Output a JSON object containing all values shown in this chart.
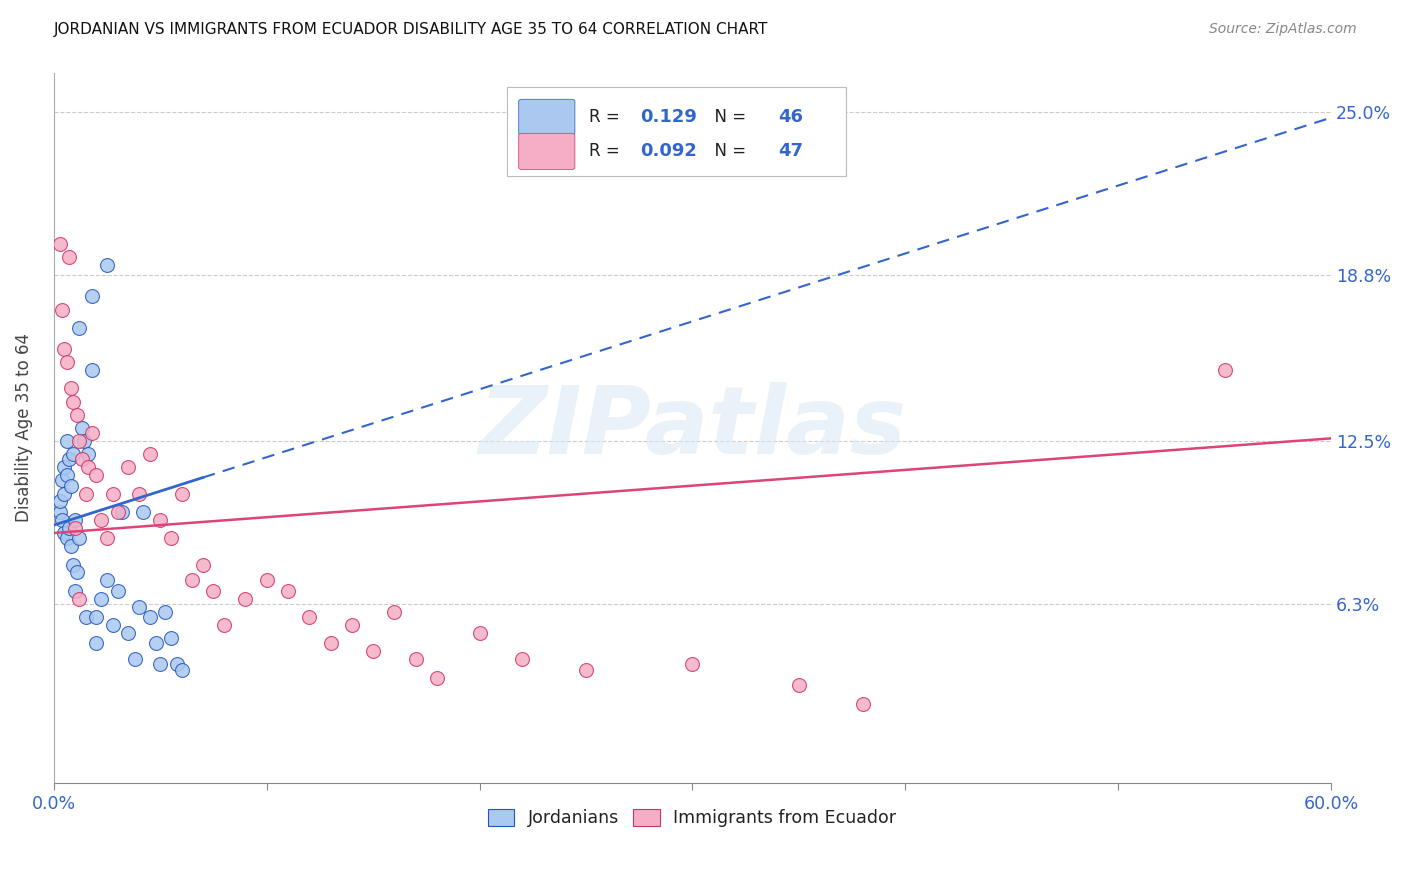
{
  "title": "JORDANIAN VS IMMIGRANTS FROM ECUADOR DISABILITY AGE 35 TO 64 CORRELATION CHART",
  "source": "Source: ZipAtlas.com",
  "ylabel": "Disability Age 35 to 64",
  "xlim": [
    0.0,
    0.6
  ],
  "ylim": [
    -0.005,
    0.265
  ],
  "ytick_values": [
    0.063,
    0.125,
    0.188,
    0.25
  ],
  "ytick_labels": [
    "6.3%",
    "12.5%",
    "18.8%",
    "25.0%"
  ],
  "blue_R": 0.129,
  "blue_N": 46,
  "pink_R": 0.092,
  "pink_N": 47,
  "blue_color": "#aac8f0",
  "pink_color": "#f5aec5",
  "blue_line_color": "#3366cc",
  "pink_line_color": "#dd4477",
  "blue_edge_color": "#2255bb",
  "pink_edge_color": "#cc3366",
  "axis_label_color": "#3366cc",
  "watermark_color": "#e0eaf8",
  "watermark_text": "ZIPatlas",
  "blue_trend_x0": 0.0,
  "blue_trend_y0": 0.093,
  "blue_trend_x1": 0.6,
  "blue_trend_y1": 0.248,
  "pink_trend_x0": 0.0,
  "pink_trend_y0": 0.09,
  "pink_trend_x1": 0.6,
  "pink_trend_y1": 0.126,
  "blue_x": [
    0.003,
    0.003,
    0.004,
    0.004,
    0.005,
    0.005,
    0.005,
    0.006,
    0.006,
    0.006,
    0.007,
    0.007,
    0.008,
    0.008,
    0.009,
    0.009,
    0.01,
    0.01,
    0.011,
    0.012,
    0.013,
    0.014,
    0.015,
    0.016,
    0.018,
    0.02,
    0.02,
    0.022,
    0.025,
    0.028,
    0.03,
    0.032,
    0.035,
    0.038,
    0.04,
    0.042,
    0.045,
    0.048,
    0.05,
    0.052,
    0.055,
    0.058,
    0.06,
    0.025,
    0.018,
    0.012
  ],
  "blue_y": [
    0.098,
    0.102,
    0.095,
    0.11,
    0.09,
    0.105,
    0.115,
    0.088,
    0.112,
    0.125,
    0.092,
    0.118,
    0.085,
    0.108,
    0.078,
    0.12,
    0.068,
    0.095,
    0.075,
    0.088,
    0.13,
    0.125,
    0.058,
    0.12,
    0.152,
    0.058,
    0.048,
    0.065,
    0.072,
    0.055,
    0.068,
    0.098,
    0.052,
    0.042,
    0.062,
    0.098,
    0.058,
    0.048,
    0.04,
    0.06,
    0.05,
    0.04,
    0.038,
    0.192,
    0.18,
    0.168
  ],
  "pink_x": [
    0.003,
    0.004,
    0.005,
    0.006,
    0.007,
    0.008,
    0.009,
    0.01,
    0.011,
    0.012,
    0.013,
    0.015,
    0.016,
    0.018,
    0.02,
    0.022,
    0.025,
    0.028,
    0.03,
    0.035,
    0.04,
    0.045,
    0.05,
    0.055,
    0.06,
    0.065,
    0.07,
    0.075,
    0.08,
    0.09,
    0.1,
    0.11,
    0.12,
    0.13,
    0.14,
    0.15,
    0.16,
    0.17,
    0.18,
    0.2,
    0.22,
    0.25,
    0.3,
    0.35,
    0.38,
    0.55,
    0.012
  ],
  "pink_y": [
    0.2,
    0.175,
    0.16,
    0.155,
    0.195,
    0.145,
    0.14,
    0.092,
    0.135,
    0.125,
    0.118,
    0.105,
    0.115,
    0.128,
    0.112,
    0.095,
    0.088,
    0.105,
    0.098,
    0.115,
    0.105,
    0.12,
    0.095,
    0.088,
    0.105,
    0.072,
    0.078,
    0.068,
    0.055,
    0.065,
    0.072,
    0.068,
    0.058,
    0.048,
    0.055,
    0.045,
    0.06,
    0.042,
    0.035,
    0.052,
    0.042,
    0.038,
    0.04,
    0.032,
    0.025,
    0.152,
    0.065
  ]
}
